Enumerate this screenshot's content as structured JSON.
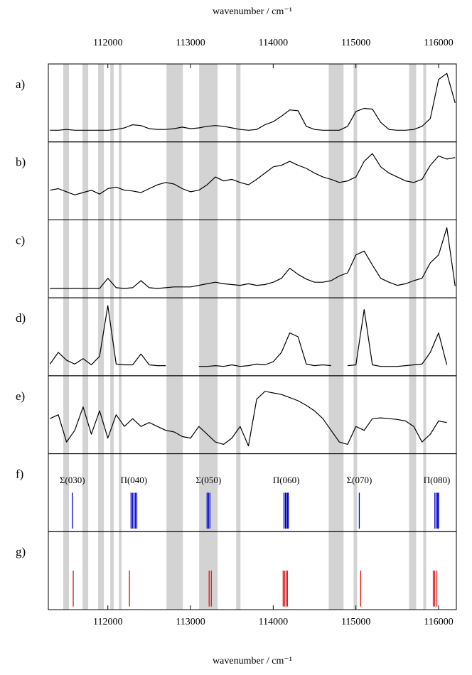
{
  "chart_data": {
    "type": "multipanel",
    "xlabel": "wavenumber / cm⁻¹",
    "xlim": [
      111280,
      116215
    ],
    "xticks": [
      112000,
      113000,
      114000,
      115000,
      116000
    ],
    "shade_color": "#d3d3d3",
    "shaded_regions": [
      [
        111461,
        111530
      ],
      [
        111693,
        111762
      ],
      [
        111882,
        111951
      ],
      [
        112029,
        112072
      ],
      [
        112132,
        112166
      ],
      [
        112709,
        112907
      ],
      [
        113104,
        113328
      ],
      [
        113552,
        113604
      ],
      [
        114671,
        114851
      ],
      [
        114972,
        115015
      ],
      [
        115643,
        115729
      ],
      [
        115815,
        115850
      ]
    ],
    "x": [
      111300,
      111400,
      111500,
      111600,
      111700,
      111800,
      111900,
      112000,
      112100,
      112200,
      112300,
      112400,
      112500,
      112600,
      112700,
      112800,
      112900,
      113000,
      113100,
      113200,
      113300,
      113400,
      113500,
      113600,
      113700,
      113800,
      113900,
      114000,
      114100,
      114200,
      114300,
      114400,
      114500,
      114600,
      114700,
      114800,
      114900,
      115000,
      115100,
      115200,
      115300,
      115400,
      115500,
      115600,
      115700,
      115800,
      115900,
      116000,
      116100,
      116200
    ],
    "panels": [
      {
        "label": "a)",
        "type": "line",
        "color": "#000000",
        "ylim": [
          0,
          1
        ],
        "values": [
          0.15,
          0.15,
          0.16,
          0.15,
          0.15,
          0.15,
          0.15,
          0.15,
          0.16,
          0.18,
          0.22,
          0.21,
          0.17,
          0.16,
          0.16,
          0.17,
          0.19,
          0.17,
          0.18,
          0.2,
          0.21,
          0.2,
          0.18,
          0.16,
          0.15,
          0.16,
          0.22,
          0.26,
          0.33,
          0.41,
          0.4,
          0.2,
          0.16,
          0.15,
          0.15,
          0.15,
          0.2,
          0.39,
          0.43,
          0.42,
          0.25,
          0.16,
          0.15,
          0.15,
          0.16,
          0.2,
          0.3,
          0.8,
          0.88,
          0.5
        ]
      },
      {
        "label": "b)",
        "type": "line",
        "color": "#000000",
        "ylim": [
          0,
          1
        ],
        "values": [
          0.38,
          0.4,
          0.36,
          0.32,
          0.35,
          0.38,
          0.33,
          0.4,
          0.42,
          0.38,
          0.37,
          0.35,
          0.4,
          0.45,
          0.48,
          0.46,
          0.4,
          0.36,
          0.38,
          0.45,
          0.55,
          0.5,
          0.52,
          0.48,
          0.45,
          0.52,
          0.6,
          0.68,
          0.7,
          0.75,
          0.7,
          0.66,
          0.6,
          0.55,
          0.52,
          0.48,
          0.5,
          0.55,
          0.75,
          0.85,
          0.68,
          0.6,
          0.55,
          0.5,
          0.48,
          0.52,
          0.7,
          0.82,
          0.78,
          0.8
        ]
      },
      {
        "label": "c)",
        "type": "line",
        "color": "#000000",
        "ylim": [
          0,
          1
        ],
        "values": [
          0.12,
          0.12,
          0.12,
          0.12,
          0.12,
          0.12,
          0.12,
          0.25,
          0.13,
          0.12,
          0.13,
          0.22,
          0.13,
          0.12,
          0.13,
          0.14,
          0.14,
          0.14,
          0.16,
          0.18,
          0.2,
          0.18,
          0.17,
          0.16,
          0.18,
          0.16,
          0.17,
          0.2,
          0.25,
          0.38,
          0.3,
          0.24,
          0.2,
          0.2,
          0.22,
          0.28,
          0.32,
          0.55,
          0.6,
          0.42,
          0.25,
          0.2,
          0.16,
          0.18,
          0.22,
          0.25,
          0.45,
          0.55,
          0.9,
          0.15
        ]
      },
      {
        "label": "d)",
        "type": "line",
        "color": "#000000",
        "ylim": [
          0,
          1
        ],
        "values": [
          0.15,
          0.3,
          0.2,
          0.15,
          0.22,
          0.14,
          0.25,
          0.9,
          0.15,
          0.14,
          0.14,
          0.28,
          0.14,
          0.13,
          0.13,
          null,
          null,
          null,
          0.12,
          0.12,
          0.13,
          0.12,
          0.14,
          0.12,
          0.13,
          0.15,
          0.14,
          0.18,
          0.3,
          0.55,
          0.5,
          0.15,
          0.13,
          0.14,
          0.13,
          null,
          0.13,
          0.14,
          0.85,
          0.14,
          0.12,
          0.12,
          0.12,
          0.13,
          0.14,
          0.15,
          0.3,
          0.55,
          0.14,
          null
        ]
      },
      {
        "label": "e)",
        "type": "line",
        "color": "#000000",
        "ylim": [
          0,
          1
        ],
        "values": [
          0.45,
          0.5,
          0.15,
          0.3,
          0.6,
          0.25,
          0.55,
          0.2,
          0.5,
          0.35,
          0.45,
          0.35,
          0.4,
          0.35,
          0.3,
          0.28,
          0.22,
          0.2,
          0.35,
          0.25,
          0.15,
          0.12,
          0.2,
          0.35,
          0.1,
          0.7,
          0.8,
          0.78,
          0.76,
          0.72,
          0.68,
          0.62,
          0.55,
          0.45,
          0.3,
          0.15,
          0.12,
          0.35,
          0.3,
          0.45,
          0.46,
          0.45,
          0.44,
          0.42,
          0.35,
          0.15,
          0.25,
          0.42,
          0.4,
          null
        ]
      },
      {
        "label": "f)",
        "type": "stick",
        "color": "#0000cc",
        "groups": [
          {
            "label": "Σ(030)",
            "positions": [
              111570
            ]
          },
          {
            "label": "Π(040)",
            "positions": [
              112280,
              112297,
              112315,
              112332,
              112350
            ]
          },
          {
            "label": "Σ(050)",
            "positions": [
              113200,
              113217,
              113234
            ]
          },
          {
            "label": "Π(060)",
            "positions": [
              114130,
              114147,
              114156,
              114173,
              114182
            ]
          },
          {
            "label": "Σ(070)",
            "positions": [
              115041
            ]
          },
          {
            "label": "Π(080)",
            "positions": [
              115955,
              115972,
              115989,
              116000
            ]
          }
        ]
      },
      {
        "label": "g)",
        "type": "stick",
        "color": "#dd1111",
        "groups": [
          {
            "positions": [
              111581
            ]
          },
          {
            "positions": [
              112261
            ]
          },
          {
            "positions": [
              113225,
              113251
            ]
          },
          {
            "positions": [
              114120,
              114137,
              114155,
              114172
            ]
          },
          {
            "positions": [
              115058
            ]
          },
          {
            "positions": [
              115936,
              115953,
              115979
            ]
          }
        ]
      }
    ]
  }
}
